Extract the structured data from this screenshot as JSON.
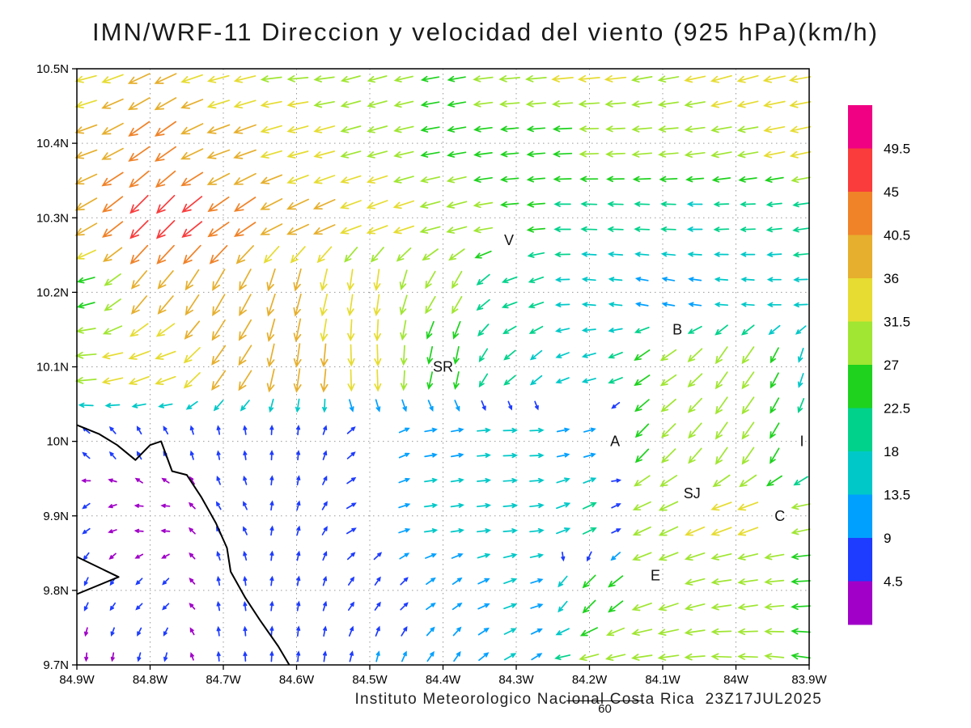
{
  "title": "IMN/WRF-11 Direccion y velocidad del viento (925 hPa)(km/h)",
  "footer": {
    "credit": "Instituto Meteorologico Nacional Costa Rica  23Z17JUL2025",
    "frame_label": "60"
  },
  "chart_data": {
    "type": "vector-field",
    "model": "IMN/WRF-11",
    "variable": "Direccion y velocidad del viento",
    "level": "925 hPa",
    "units": "km/h",
    "valid_time": "23Z17JUL2025",
    "forecast_hour": "60",
    "x_axis": {
      "values": [
        84.9,
        84.8,
        84.7,
        84.6,
        84.5,
        84.4,
        84.3,
        84.2,
        84.1,
        84.0,
        83.9
      ],
      "labels": [
        "84.9W",
        "84.8W",
        "84.7W",
        "84.6W",
        "84.5W",
        "84.4W",
        "84.3W",
        "84.2W",
        "84.1W",
        "84W",
        "83.9W"
      ]
    },
    "y_axis": {
      "values": [
        10.5,
        10.4,
        10.3,
        10.2,
        10.1,
        10.0,
        9.9,
        9.8,
        9.7
      ],
      "labels": [
        "10.5N",
        "10.4N",
        "10.3N",
        "10.2N",
        "10.1N",
        "10N",
        "9.9N",
        "9.8N",
        "9.7N"
      ]
    },
    "grid": {
      "dotted": true
    },
    "colorbar": {
      "levels": [
        4.5,
        9,
        13.5,
        18,
        22.5,
        27,
        31.5,
        36,
        40.5,
        45,
        49.5
      ],
      "labels": [
        "4.5",
        "9",
        "13.5",
        "18",
        "22.5",
        "27",
        "31.5",
        "36",
        "40.5",
        "45",
        "49.5"
      ],
      "colors": [
        "#a000c8",
        "#1e3cff",
        "#00a0ff",
        "#00c8c8",
        "#00d28c",
        "#1ed21e",
        "#a0e632",
        "#e6dc32",
        "#e6af2d",
        "#f08228",
        "#fa3c3c",
        "#f00082"
      ]
    },
    "stations": [
      {
        "label": "V",
        "lon": 84.31,
        "lat": 10.27
      },
      {
        "label": "B",
        "lon": 84.08,
        "lat": 10.15
      },
      {
        "label": "SR",
        "lon": 84.4,
        "lat": 10.1
      },
      {
        "label": "A",
        "lon": 84.165,
        "lat": 10.0
      },
      {
        "label": "I",
        "lon": 83.91,
        "lat": 10.0
      },
      {
        "label": "SJ",
        "lon": 84.06,
        "lat": 9.93
      },
      {
        "label": "C",
        "lon": 83.94,
        "lat": 9.9
      },
      {
        "label": "E",
        "lon": 84.11,
        "lat": 9.82
      }
    ],
    "coastline": [
      [
        84.9,
        10.022
      ],
      [
        84.87,
        10.01
      ],
      [
        84.845,
        9.995
      ],
      [
        84.82,
        9.975
      ],
      [
        84.8,
        9.995
      ],
      [
        84.785,
        10.0
      ],
      [
        84.77,
        9.96
      ],
      [
        84.75,
        9.955
      ],
      [
        84.73,
        9.925
      ],
      [
        84.71,
        9.89
      ],
      [
        84.695,
        9.857
      ],
      [
        84.69,
        9.825
      ],
      [
        84.67,
        9.79
      ],
      [
        84.65,
        9.76
      ],
      [
        84.625,
        9.725
      ],
      [
        84.61,
        9.7
      ]
    ],
    "peninsula": [
      [
        84.9,
        9.845
      ],
      [
        84.843,
        9.818
      ],
      [
        84.9,
        9.795
      ]
    ],
    "wind_grid": {
      "dir_convention": "math degrees toward which arrow points: 0=east, 90=north, 180=west, 270=south",
      "lons": [
        84.9,
        84.8,
        84.7,
        84.6,
        84.5,
        84.4,
        84.3,
        84.2,
        84.1,
        84.0,
        83.9
      ],
      "lats": [
        10.5,
        10.4,
        10.3,
        10.2,
        10.1,
        10.0,
        9.9,
        9.8,
        9.7
      ],
      "dir_deg": [
        [
          195,
          205,
          195,
          185,
          195,
          190,
          185,
          185,
          190,
          195,
          190
        ],
        [
          200,
          215,
          200,
          195,
          195,
          190,
          185,
          182,
          185,
          190,
          192
        ],
        [
          210,
          225,
          215,
          205,
          200,
          195,
          185,
          178,
          178,
          182,
          188
        ],
        [
          195,
          230,
          240,
          255,
          262,
          240,
          200,
          175,
          170,
          176,
          182
        ],
        [
          185,
          200,
          235,
          262,
          272,
          258,
          220,
          195,
          215,
          235,
          252
        ],
        [
          140,
          120,
          100,
          85,
          40,
          10,
          2,
          15,
          225,
          235,
          245
        ],
        [
          215,
          175,
          120,
          75,
          30,
          8,
          5,
          25,
          205,
          200,
          192
        ],
        [
          245,
          225,
          100,
          80,
          55,
          35,
          20,
          225,
          198,
          188,
          183
        ],
        [
          265,
          255,
          95,
          85,
          75,
          55,
          30,
          195,
          188,
          178,
          172
        ]
      ],
      "speed_kmh": [
        [
          33,
          38,
          34,
          31,
          29,
          25,
          31,
          33,
          31,
          33,
          36
        ],
        [
          36,
          42,
          38,
          33,
          31,
          27,
          25,
          27,
          29,
          31,
          33
        ],
        [
          40,
          48,
          44,
          38,
          34,
          31,
          25,
          20,
          18,
          18,
          20
        ],
        [
          25,
          38,
          40,
          36,
          33,
          29,
          20,
          15,
          13,
          14,
          16
        ],
        [
          31,
          33,
          38,
          38,
          33,
          25,
          18,
          16,
          27,
          31,
          18
        ],
        [
          6,
          5,
          5,
          6,
          8,
          13,
          16,
          12,
          29,
          31,
          20
        ],
        [
          5,
          4,
          5,
          6,
          9,
          14,
          16,
          18,
          31,
          33,
          27
        ],
        [
          5,
          5,
          5,
          6,
          7,
          10,
          15,
          25,
          31,
          29,
          27
        ],
        [
          4,
          5,
          6,
          8,
          9,
          11,
          14,
          29,
          31,
          29,
          27
        ]
      ]
    }
  }
}
